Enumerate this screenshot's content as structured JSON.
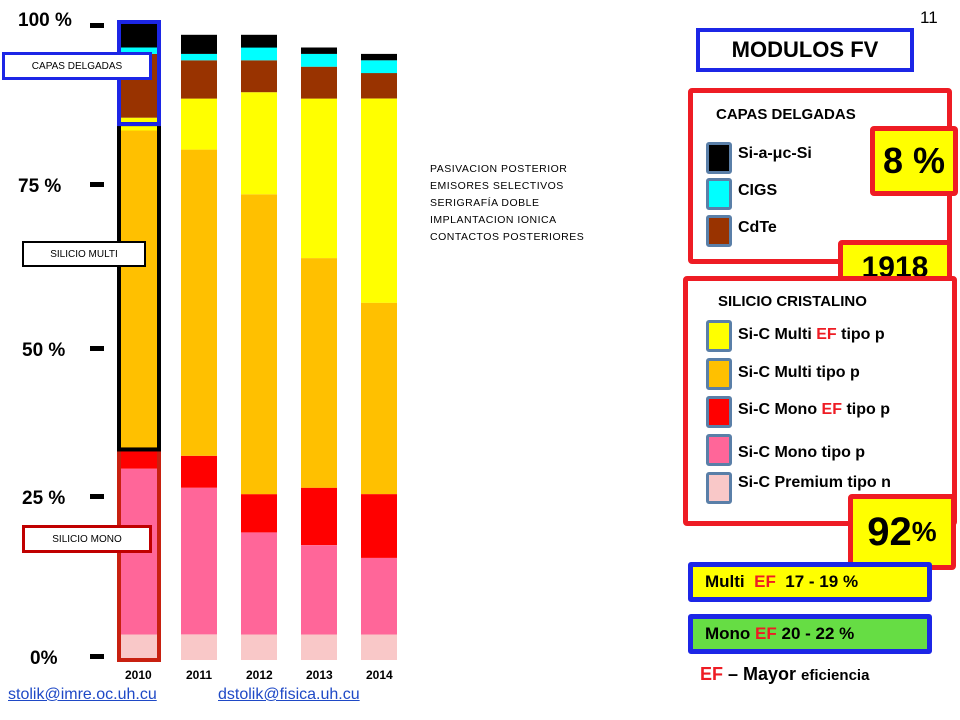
{
  "page_number": "11",
  "chart_data": {
    "type": "bar",
    "stacked": true,
    "categories": [
      "2010",
      "2011",
      "2012",
      "2013",
      "2014"
    ],
    "ylim": [
      0,
      100
    ],
    "y_tick_labels": [
      "100 %",
      "75 %",
      "50 %",
      "25 %",
      "0%"
    ],
    "y_ticks": [
      100,
      75,
      50,
      25,
      0
    ],
    "series": [
      {
        "name": "Si-C Premium tipo n",
        "color": "#f9c8c8",
        "values": [
          4,
          4,
          4,
          4,
          4
        ]
      },
      {
        "name": "Si-C Mono tipo p",
        "color": "#ff6699",
        "values": [
          26,
          23,
          16,
          14,
          12
        ]
      },
      {
        "name": "Si-C Mono EF tipo p",
        "color": "#ff0000",
        "values": [
          3,
          5,
          6,
          9,
          10
        ]
      },
      {
        "name": "Si-C Multi tipo p",
        "color": "#ffc000",
        "values": [
          50,
          48,
          47,
          36,
          30
        ]
      },
      {
        "name": "Si-C Multi EF tipo p",
        "color": "#ffff00",
        "values": [
          2,
          8,
          16,
          25,
          32
        ]
      },
      {
        "name": "CdTe",
        "color": "#993300",
        "values": [
          10,
          6,
          5,
          5,
          4
        ]
      },
      {
        "name": "CIGS",
        "color": "#00ffff",
        "values": [
          1,
          1,
          2,
          2,
          2
        ]
      },
      {
        "name": "Si-a-μc-Si",
        "color": "#000000",
        "values": [
          4,
          3,
          2,
          1,
          1
        ]
      }
    ],
    "callouts": [
      "CAPAS DELGADAS",
      "SILICIO MULTI",
      "SILICIO MONO"
    ]
  },
  "notes": [
    "PASIVACION  POSTERIOR",
    "EMISORES  SELECTIVOS",
    "SERIGRAFÍA  DOBLE",
    "IMPLANTACION   IONICA",
    "CONTACTOS   POSTERIORES"
  ],
  "legend": {
    "title": "MODULOS FV",
    "thin_film": {
      "heading": "CAPAS  DELGADAS",
      "items": [
        {
          "label": "Si-a-μc-Si",
          "color": "#000000"
        },
        {
          "label": "CIGS",
          "color": "#00ffff"
        },
        {
          "label": "CdTe",
          "color": "#993300"
        }
      ],
      "share": "8  %"
    },
    "year_badge": "1918",
    "crystalline": {
      "heading": "SILICIO CRISTALINO",
      "items": [
        {
          "prefix": "Si-C Multi  ",
          "ef": "EF",
          "suffix": " tipo p",
          "color": "#ffff00"
        },
        {
          "prefix": " Si-C Multi tipo p",
          "ef": "",
          "suffix": "",
          "color": "#ffc000"
        },
        {
          "prefix": "Si-C Mono ",
          "ef": "EF",
          "suffix": " tipo p",
          "color": "#ff0000"
        },
        {
          "prefix": "Si-C Mono tipo p",
          "ef": "",
          "suffix": "",
          "color": "#ff6699"
        },
        {
          "prefix": "Si-C Premium tipo n",
          "ef": "",
          "suffix": "",
          "color": "#f9c8c8"
        }
      ],
      "share_num": "92",
      "share_unit": " %"
    }
  },
  "efficiency": {
    "multi": {
      "prefix": "Multi  ",
      "ef": "EF",
      "range": "  17 - 19 %",
      "color": "#ffff00"
    },
    "mono": {
      "prefix": "Mono ",
      "ef": "EF",
      "range": " 20 - 22 %",
      "color": "#66dd44"
    },
    "definition": {
      "ef": "EF",
      "dash": " – Mayor ",
      "word": "eficiencia"
    }
  },
  "footer": {
    "email1": "stolik@imre.oc.uh.cu",
    "email2": "dstolik@fisica.uh.cu"
  }
}
